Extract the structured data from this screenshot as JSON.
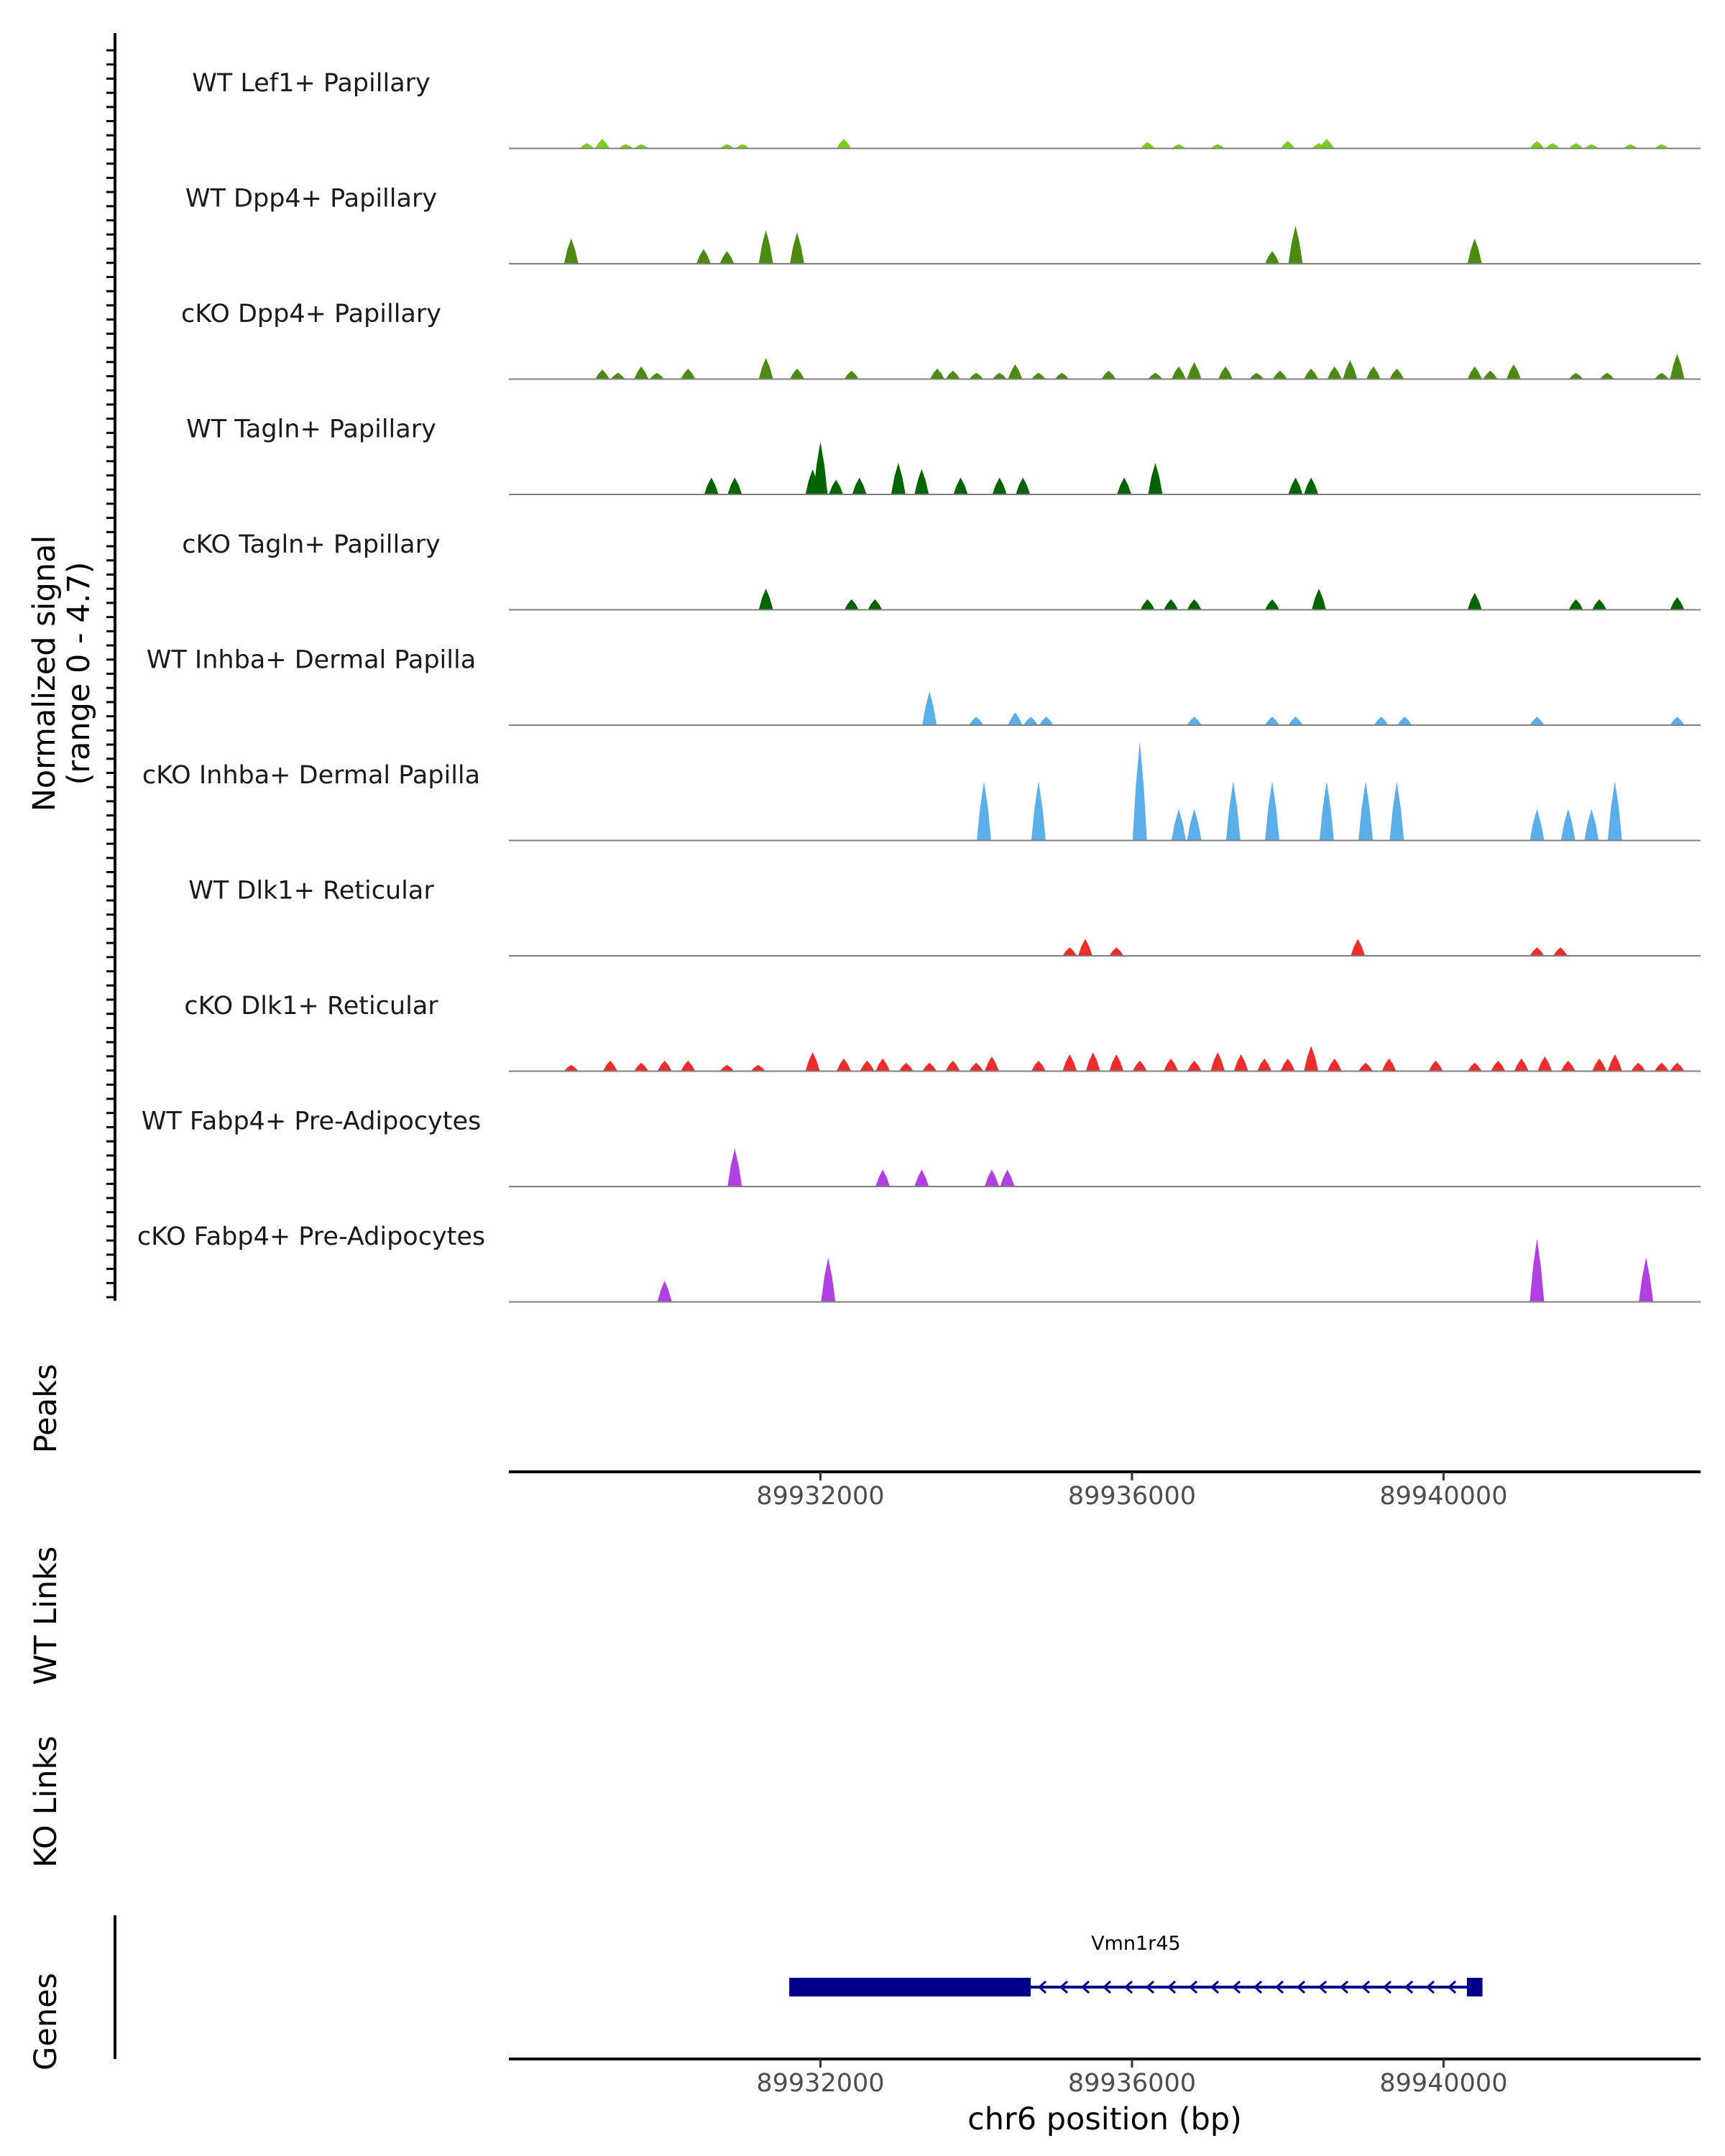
{
  "chart_data": {
    "type": "area",
    "title": "",
    "xlabel": "chr6 position (bp)",
    "ylabel": "Normalized signal",
    "ylabel_range": "(range 0 - 4.7)",
    "x_ticks": [
      89932000,
      89936000,
      89940000
    ],
    "x_tick_labels": [
      "89932000",
      "89936000",
      "89940000"
    ],
    "xlim": [
      89928000,
      89943300
    ],
    "ylim": [
      0,
      4.7
    ],
    "colors": {
      "line": "#000000",
      "baseline": "#7f7f7f",
      "tick_text": "#4d4d4d",
      "gene": "#00008b"
    },
    "series": [
      {
        "name": "WT Lef1+ Papillary",
        "color": "#7ccd1a",
        "peaks": [
          [
            89929000,
            0.25
          ],
          [
            89929200,
            0.45
          ],
          [
            89929500,
            0.2
          ],
          [
            89929700,
            0.2
          ],
          [
            89930800,
            0.2
          ],
          [
            89931000,
            0.2
          ],
          [
            89932300,
            0.45
          ],
          [
            89936200,
            0.3
          ],
          [
            89936600,
            0.2
          ],
          [
            89937100,
            0.2
          ],
          [
            89938000,
            0.35
          ],
          [
            89938400,
            0.25
          ],
          [
            89938500,
            0.45
          ],
          [
            89941200,
            0.35
          ],
          [
            89941400,
            0.25
          ],
          [
            89941700,
            0.25
          ],
          [
            89941900,
            0.2
          ],
          [
            89942400,
            0.2
          ],
          [
            89942800,
            0.2
          ]
        ]
      },
      {
        "name": "WT Dpp4+ Papillary",
        "color": "#4c8b12",
        "peaks": [
          [
            89928800,
            1.2
          ],
          [
            89930500,
            0.7
          ],
          [
            89930800,
            0.6
          ],
          [
            89931300,
            1.6
          ],
          [
            89931700,
            1.5
          ],
          [
            89937800,
            0.6
          ],
          [
            89938100,
            1.8
          ],
          [
            89940400,
            1.2
          ]
        ]
      },
      {
        "name": "cKO Dpp4+ Papillary",
        "color": "#4c8b12",
        "peaks": [
          [
            89929200,
            0.45
          ],
          [
            89929400,
            0.3
          ],
          [
            89929700,
            0.6
          ],
          [
            89929900,
            0.3
          ],
          [
            89930300,
            0.5
          ],
          [
            89931300,
            1.0
          ],
          [
            89931700,
            0.5
          ],
          [
            89932400,
            0.4
          ],
          [
            89933500,
            0.5
          ],
          [
            89933700,
            0.4
          ],
          [
            89934000,
            0.3
          ],
          [
            89934300,
            0.3
          ],
          [
            89934500,
            0.7
          ],
          [
            89934800,
            0.3
          ],
          [
            89935100,
            0.3
          ],
          [
            89935700,
            0.4
          ],
          [
            89936300,
            0.3
          ],
          [
            89936600,
            0.6
          ],
          [
            89936800,
            0.8
          ],
          [
            89937200,
            0.6
          ],
          [
            89937600,
            0.3
          ],
          [
            89937900,
            0.4
          ],
          [
            89938300,
            0.5
          ],
          [
            89938600,
            0.6
          ],
          [
            89938800,
            0.9
          ],
          [
            89939100,
            0.6
          ],
          [
            89939400,
            0.5
          ],
          [
            89940400,
            0.6
          ],
          [
            89940600,
            0.4
          ],
          [
            89940900,
            0.7
          ],
          [
            89941700,
            0.3
          ],
          [
            89942100,
            0.3
          ],
          [
            89942800,
            0.3
          ],
          [
            89943000,
            1.2
          ]
        ]
      },
      {
        "name": "WT Tagln+ Papillary",
        "color": "#006400",
        "peaks": [
          [
            89930600,
            0.8
          ],
          [
            89930900,
            0.8
          ],
          [
            89931900,
            1.2
          ],
          [
            89932000,
            2.5
          ],
          [
            89932200,
            0.7
          ],
          [
            89932500,
            0.8
          ],
          [
            89933000,
            1.5
          ],
          [
            89933300,
            1.2
          ],
          [
            89933800,
            0.8
          ],
          [
            89934300,
            0.8
          ],
          [
            89934600,
            0.8
          ],
          [
            89935900,
            0.8
          ],
          [
            89936300,
            1.5
          ],
          [
            89938100,
            0.8
          ],
          [
            89938300,
            0.8
          ]
        ]
      },
      {
        "name": "cKO Tagln+ Papillary",
        "color": "#006400",
        "peaks": [
          [
            89931300,
            1.0
          ],
          [
            89932400,
            0.5
          ],
          [
            89932700,
            0.5
          ],
          [
            89936200,
            0.5
          ],
          [
            89936500,
            0.5
          ],
          [
            89936800,
            0.5
          ],
          [
            89937800,
            0.5
          ],
          [
            89938400,
            1.0
          ],
          [
            89940400,
            0.8
          ],
          [
            89941700,
            0.5
          ],
          [
            89942000,
            0.5
          ],
          [
            89943000,
            0.6
          ]
        ]
      },
      {
        "name": "WT Inhba+ Dermal Papilla",
        "color": "#5aaeea",
        "peaks": [
          [
            89933400,
            1.6
          ],
          [
            89934000,
            0.4
          ],
          [
            89934500,
            0.6
          ],
          [
            89934700,
            0.4
          ],
          [
            89934900,
            0.4
          ],
          [
            89936800,
            0.4
          ],
          [
            89937800,
            0.4
          ],
          [
            89938100,
            0.4
          ],
          [
            89939200,
            0.4
          ],
          [
            89939500,
            0.4
          ],
          [
            89941200,
            0.4
          ],
          [
            89943000,
            0.4
          ]
        ]
      },
      {
        "name": "cKO Inhba+ Dermal Papilla",
        "color": "#5aaeea",
        "peaks": [
          [
            89934100,
            2.8
          ],
          [
            89934800,
            2.8
          ],
          [
            89936100,
            4.7
          ],
          [
            89936600,
            1.5
          ],
          [
            89936800,
            1.5
          ],
          [
            89937300,
            2.8
          ],
          [
            89937800,
            2.8
          ],
          [
            89938500,
            2.8
          ],
          [
            89939000,
            2.8
          ],
          [
            89939400,
            2.8
          ],
          [
            89941200,
            1.5
          ],
          [
            89941600,
            1.5
          ],
          [
            89941900,
            1.5
          ],
          [
            89942200,
            2.8
          ]
        ]
      },
      {
        "name": "WT Dlk1+ Reticular",
        "color": "#ee2c2c",
        "peaks": [
          [
            89935200,
            0.4
          ],
          [
            89935400,
            0.8
          ],
          [
            89935800,
            0.4
          ],
          [
            89938900,
            0.8
          ],
          [
            89941200,
            0.4
          ],
          [
            89941500,
            0.4
          ]
        ]
      },
      {
        "name": "cKO Dlk1+ Reticular",
        "color": "#ee2c2c",
        "peaks": [
          [
            89928800,
            0.3
          ],
          [
            89929300,
            0.5
          ],
          [
            89929700,
            0.4
          ],
          [
            89930000,
            0.5
          ],
          [
            89930300,
            0.5
          ],
          [
            89930800,
            0.3
          ],
          [
            89931200,
            0.3
          ],
          [
            89931900,
            0.9
          ],
          [
            89932300,
            0.6
          ],
          [
            89932600,
            0.5
          ],
          [
            89932800,
            0.6
          ],
          [
            89933100,
            0.4
          ],
          [
            89933400,
            0.4
          ],
          [
            89933700,
            0.5
          ],
          [
            89934000,
            0.4
          ],
          [
            89934200,
            0.7
          ],
          [
            89934800,
            0.5
          ],
          [
            89935200,
            0.8
          ],
          [
            89935500,
            0.9
          ],
          [
            89935800,
            0.8
          ],
          [
            89936100,
            0.5
          ],
          [
            89936500,
            0.6
          ],
          [
            89936800,
            0.5
          ],
          [
            89937100,
            0.9
          ],
          [
            89937400,
            0.8
          ],
          [
            89937700,
            0.6
          ],
          [
            89938000,
            0.6
          ],
          [
            89938300,
            1.2
          ],
          [
            89938600,
            0.6
          ],
          [
            89939000,
            0.4
          ],
          [
            89939300,
            0.6
          ],
          [
            89939900,
            0.5
          ],
          [
            89940400,
            0.4
          ],
          [
            89940700,
            0.5
          ],
          [
            89941000,
            0.6
          ],
          [
            89941300,
            0.7
          ],
          [
            89941600,
            0.5
          ],
          [
            89942000,
            0.6
          ],
          [
            89942200,
            0.8
          ],
          [
            89942500,
            0.4
          ],
          [
            89942800,
            0.4
          ],
          [
            89943000,
            0.4
          ]
        ]
      },
      {
        "name": "WT Fabp4+ Pre-Adipocytes",
        "color": "#b040e0",
        "peaks": [
          [
            89930900,
            1.8
          ],
          [
            89932800,
            0.8
          ],
          [
            89933300,
            0.8
          ],
          [
            89934200,
            0.8
          ],
          [
            89934400,
            0.8
          ]
        ]
      },
      {
        "name": "cKO Fabp4+ Pre-Adipocytes",
        "color": "#b040e0",
        "peaks": [
          [
            89930000,
            1.0
          ],
          [
            89932100,
            2.1
          ],
          [
            89941200,
            3.0
          ],
          [
            89942600,
            2.1
          ]
        ]
      }
    ],
    "panels": {
      "peaks": {
        "label": "Peaks",
        "items": []
      },
      "wt_links": {
        "label": "WT Links",
        "items": []
      },
      "ko_links": {
        "label": "KO Links",
        "items": []
      },
      "genes": {
        "label": "Genes",
        "items": [
          {
            "name": "Vmn1r45",
            "start": 89931600,
            "end": 89940500,
            "strand": "-",
            "thick_start": 89931600,
            "thick_end": 89934700,
            "utr_start": 89940300,
            "utr_end": 89940500
          }
        ]
      }
    }
  }
}
